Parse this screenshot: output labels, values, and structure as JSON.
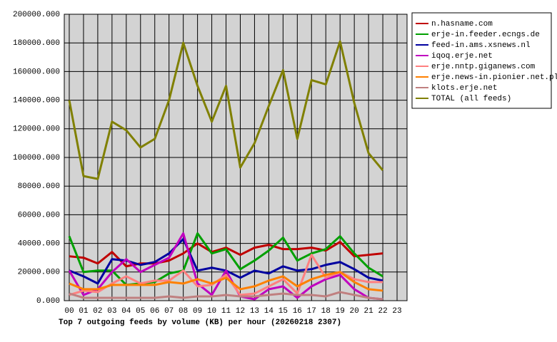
{
  "chart_data": {
    "type": "line",
    "title": "Top 7 outgoing feeds by volume (KB) per hour (20260218 2307)",
    "x": [
      0,
      1,
      2,
      3,
      4,
      5,
      6,
      7,
      8,
      9,
      10,
      11,
      12,
      13,
      14,
      15,
      16,
      17,
      18,
      19,
      20,
      21,
      22
    ],
    "xlim": [
      -0.35,
      23.7
    ],
    "xticks": [
      {
        "value": 0,
        "label": "00"
      },
      {
        "value": 1,
        "label": "01"
      },
      {
        "value": 2,
        "label": "02"
      },
      {
        "value": 3,
        "label": "03"
      },
      {
        "value": 4,
        "label": "04"
      },
      {
        "value": 5,
        "label": "05"
      },
      {
        "value": 6,
        "label": "06"
      },
      {
        "value": 7,
        "label": "07"
      },
      {
        "value": 8,
        "label": "08"
      },
      {
        "value": 9,
        "label": "09"
      },
      {
        "value": 10,
        "label": "10"
      },
      {
        "value": 11,
        "label": "11"
      },
      {
        "value": 12,
        "label": "12"
      },
      {
        "value": 13,
        "label": "13"
      },
      {
        "value": 14,
        "label": "14"
      },
      {
        "value": 15,
        "label": "15"
      },
      {
        "value": 16,
        "label": "16"
      },
      {
        "value": 17,
        "label": "17"
      },
      {
        "value": 18,
        "label": "18"
      },
      {
        "value": 19,
        "label": "19"
      },
      {
        "value": 20,
        "label": "20"
      },
      {
        "value": 21,
        "label": "21"
      },
      {
        "value": 22,
        "label": "22"
      },
      {
        "value": 23,
        "label": "23"
      }
    ],
    "ylim": [
      0,
      200000
    ],
    "yticks": [
      {
        "value": 0,
        "label": "0.000"
      },
      {
        "value": 20000,
        "label": "20000.000"
      },
      {
        "value": 40000,
        "label": "40000.000"
      },
      {
        "value": 60000,
        "label": "60000.000"
      },
      {
        "value": 80000,
        "label": "80000.000"
      },
      {
        "value": 100000,
        "label": "100000.000"
      },
      {
        "value": 120000,
        "label": "120000.000"
      },
      {
        "value": 140000,
        "label": "140000.000"
      },
      {
        "value": 160000,
        "label": "160000.000"
      },
      {
        "value": 180000,
        "label": "180000.000"
      },
      {
        "value": 200000,
        "label": "200000.000"
      }
    ],
    "grid": true,
    "legend": "outside-right",
    "series": [
      {
        "name": "n.hasname.com",
        "color": "#c00000",
        "values": [
          31000,
          30000,
          26000,
          34000,
          24000,
          26000,
          26000,
          28000,
          33000,
          40000,
          34000,
          37000,
          32000,
          37000,
          39000,
          36000,
          36000,
          37000,
          35000,
          41000,
          31000,
          32000,
          33000
        ]
      },
      {
        "name": "erje-in.feeder.ecngs.de",
        "color": "#00a000",
        "values": [
          45000,
          20000,
          21000,
          21000,
          11000,
          12000,
          13000,
          19000,
          21000,
          47000,
          33000,
          36000,
          22000,
          28000,
          35000,
          44000,
          28000,
          33000,
          36000,
          45000,
          33000,
          23000,
          17000
        ]
      },
      {
        "name": "feed-in.ams.xsnews.nl",
        "color": "#0000a0",
        "values": [
          21000,
          17000,
          12000,
          29000,
          28000,
          25000,
          27000,
          33000,
          43000,
          21000,
          23000,
          21000,
          16000,
          21000,
          19000,
          24000,
          21000,
          22000,
          25000,
          27000,
          22000,
          16000,
          14000
        ]
      },
      {
        "name": "iqoq.erje.net",
        "color": "#c000c0",
        "values": [
          21000,
          4000,
          8000,
          20000,
          29000,
          20000,
          25000,
          30000,
          47000,
          12000,
          4000,
          21000,
          3000,
          1000,
          8000,
          10000,
          2000,
          10000,
          15000,
          18000,
          8000,
          2000,
          1000
        ]
      },
      {
        "name": "erje.nntp.giganews.com",
        "color": "#ff8080",
        "values": [
          4000,
          7000,
          6000,
          12000,
          17000,
          12000,
          14000,
          14000,
          21000,
          10000,
          11000,
          18000,
          4000,
          5000,
          10000,
          15000,
          5000,
          32000,
          16000,
          20000,
          15000,
          13000,
          13000
        ]
      },
      {
        "name": "erje.news-in.pionier.net.pl",
        "color": "#ff8000",
        "values": [
          12000,
          8000,
          8000,
          11000,
          11000,
          11000,
          11000,
          13000,
          12000,
          15000,
          12000,
          16000,
          8000,
          10000,
          14000,
          17000,
          10000,
          15000,
          18000,
          20000,
          13000,
          8000,
          7000
        ]
      },
      {
        "name": "klots.erje.net",
        "color": "#c08080",
        "values": [
          5000,
          2000,
          2000,
          2000,
          2000,
          2000,
          2000,
          3000,
          2000,
          3000,
          3000,
          4000,
          3000,
          3000,
          4000,
          5000,
          4000,
          4000,
          3000,
          6000,
          4000,
          2000,
          1000
        ]
      },
      {
        "name": "TOTAL (all feeds)",
        "color": "#808000",
        "values": [
          140000,
          87000,
          85000,
          125000,
          119000,
          107000,
          113000,
          140000,
          180000,
          150000,
          125000,
          150000,
          93000,
          110000,
          136000,
          161000,
          113000,
          154000,
          151000,
          181000,
          138000,
          103000,
          91000
        ]
      }
    ]
  }
}
